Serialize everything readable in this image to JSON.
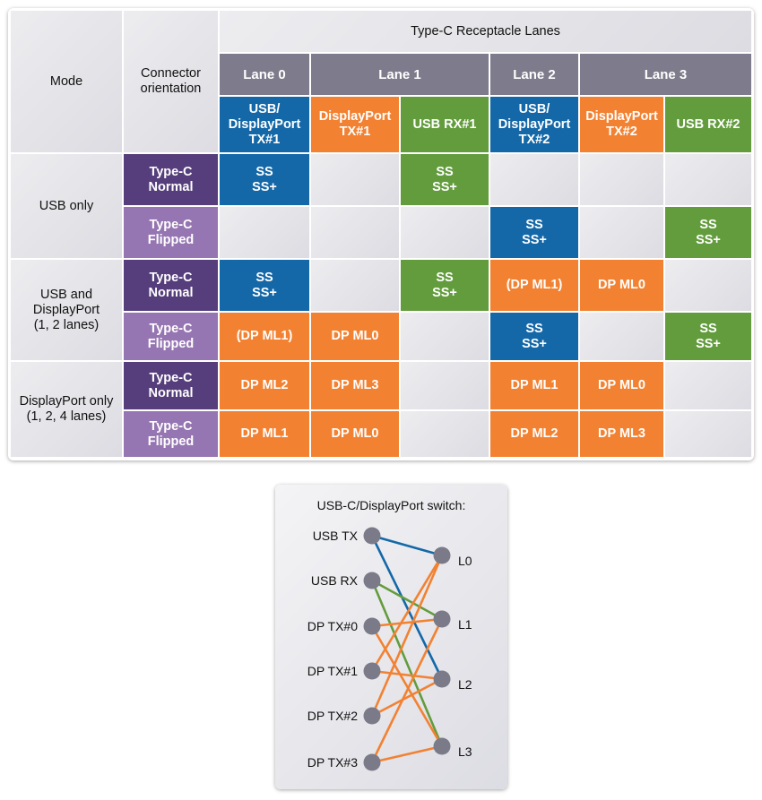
{
  "colors": {
    "blue": "#1468a8",
    "orange": "#f28232",
    "green": "#639c3d",
    "dark_purple": "#553e7b",
    "light_purple": "#9676b2",
    "lane_gray": "#7e7c8c",
    "node": "#7b7a88"
  },
  "table": {
    "mode_header": "Mode",
    "orientation_header": "Connector\norientation",
    "lanes_title": "Type-C Receptacle Lanes",
    "lanes": [
      {
        "label": "Lane 0",
        "span": 1
      },
      {
        "label": "Lane 1",
        "span": 2
      },
      {
        "label": "Lane 2",
        "span": 1
      },
      {
        "label": "Lane 3",
        "span": 2
      }
    ],
    "signals": [
      {
        "label": "USB/\nDisplayPort\nTX#1",
        "color": "blue"
      },
      {
        "label": "DisplayPort\nTX#1",
        "color": "orange"
      },
      {
        "label": "USB RX#1",
        "color": "green"
      },
      {
        "label": "USB/\nDisplayPort\nTX#2",
        "color": "blue"
      },
      {
        "label": "DisplayPort\nTX#2",
        "color": "orange"
      },
      {
        "label": "USB RX#2",
        "color": "green"
      }
    ],
    "modes": [
      {
        "label": "USB only",
        "rows": [
          {
            "orientation": "Type-C\nNormal",
            "cells": [
              {
                "t": "SS\nSS+",
                "c": "blue"
              },
              null,
              {
                "t": "SS\nSS+",
                "c": "green"
              },
              null,
              null,
              null
            ]
          },
          {
            "orientation": "Type-C\nFlipped",
            "cells": [
              null,
              null,
              null,
              {
                "t": "SS\nSS+",
                "c": "blue"
              },
              null,
              {
                "t": "SS\nSS+",
                "c": "green"
              }
            ]
          }
        ]
      },
      {
        "label": "USB and\nDisplayPort\n(1, 2 lanes)",
        "rows": [
          {
            "orientation": "Type-C\nNormal",
            "cells": [
              {
                "t": "SS\nSS+",
                "c": "blue"
              },
              null,
              {
                "t": "SS\nSS+",
                "c": "green"
              },
              {
                "t": "(DP ML1)",
                "c": "orange"
              },
              {
                "t": "DP ML0",
                "c": "orange"
              },
              null
            ]
          },
          {
            "orientation": "Type-C\nFlipped",
            "cells": [
              {
                "t": "(DP ML1)",
                "c": "orange"
              },
              {
                "t": "DP ML0",
                "c": "orange"
              },
              null,
              {
                "t": "SS\nSS+",
                "c": "blue"
              },
              null,
              {
                "t": "SS\nSS+",
                "c": "green"
              }
            ]
          }
        ]
      },
      {
        "label": "DisplayPort only\n(1, 2, 4 lanes)",
        "rows": [
          {
            "orientation": "Type-C\nNormal",
            "cells": [
              {
                "t": "DP ML2",
                "c": "orange"
              },
              {
                "t": "DP ML3",
                "c": "orange"
              },
              null,
              {
                "t": "DP ML1",
                "c": "orange"
              },
              {
                "t": "DP ML0",
                "c": "orange"
              },
              null
            ]
          },
          {
            "orientation": "Type-C\nFlipped",
            "cells": [
              {
                "t": "DP ML1",
                "c": "orange"
              },
              {
                "t": "DP ML0",
                "c": "orange"
              },
              null,
              {
                "t": "DP ML2",
                "c": "orange"
              },
              {
                "t": "DP ML3",
                "c": "orange"
              },
              null
            ]
          }
        ]
      }
    ]
  },
  "switch": {
    "title": "USB-C/DisplayPort switch:",
    "inputs": [
      "USB TX",
      "USB RX",
      "DP TX#0",
      "DP TX#1",
      "DP TX#2",
      "DP TX#3"
    ],
    "outputs": [
      "L0",
      "L1",
      "L2",
      "L3"
    ],
    "connections": [
      {
        "from": "USB TX",
        "to": "L0",
        "color": "blue"
      },
      {
        "from": "USB TX",
        "to": "L2",
        "color": "blue"
      },
      {
        "from": "USB RX",
        "to": "L1",
        "color": "green"
      },
      {
        "from": "USB RX",
        "to": "L3",
        "color": "green"
      },
      {
        "from": "DP TX#0",
        "to": "L1",
        "color": "orange"
      },
      {
        "from": "DP TX#0",
        "to": "L3",
        "color": "orange"
      },
      {
        "from": "DP TX#1",
        "to": "L0",
        "color": "orange"
      },
      {
        "from": "DP TX#1",
        "to": "L2",
        "color": "orange"
      },
      {
        "from": "DP TX#2",
        "to": "L0",
        "color": "orange"
      },
      {
        "from": "DP TX#2",
        "to": "L2",
        "color": "orange"
      },
      {
        "from": "DP TX#3",
        "to": "L1",
        "color": "orange"
      },
      {
        "from": "DP TX#3",
        "to": "L3",
        "color": "orange"
      }
    ]
  }
}
